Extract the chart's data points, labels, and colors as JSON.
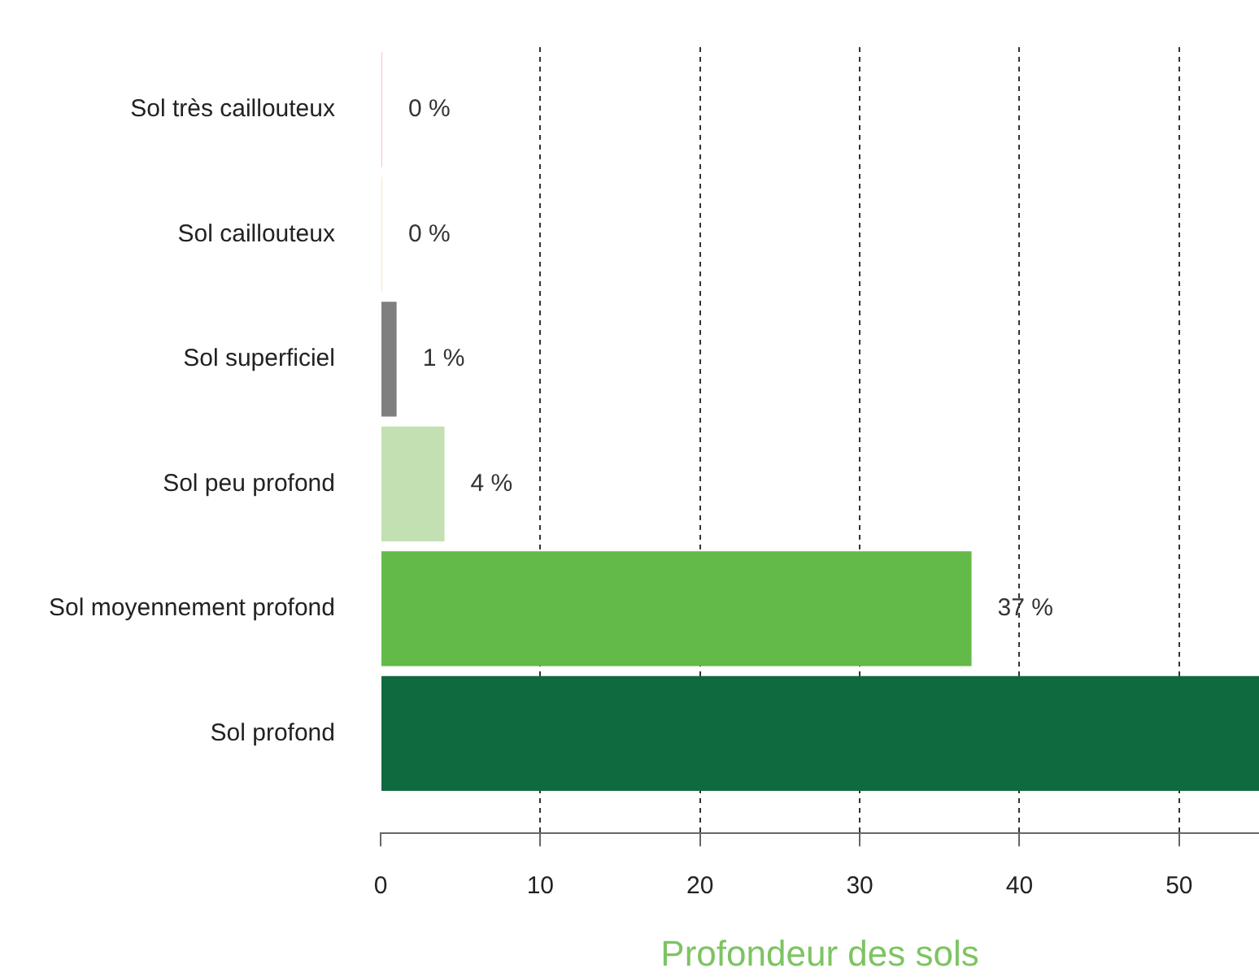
{
  "chart_data": {
    "type": "bar",
    "orientation": "horizontal",
    "xlabel": "Profondeur des sols",
    "categories": [
      "Sol très caillouteux",
      "Sol caillouteux",
      "Sol superficiel",
      "Sol peu profond",
      "Sol moyennement profond",
      "Sol profond"
    ],
    "values": [
      0,
      0,
      1,
      4,
      37,
      55
    ],
    "colors": [
      "#f5c4c4",
      "#fbe6bb",
      "#7f7f7f",
      "#c2e0b1",
      "#63ba48",
      "#106a3f"
    ],
    "value_labels": [
      "0 %",
      "0 %",
      "1 %",
      "4 %",
      "37 %",
      null
    ],
    "xlim": [
      0,
      55
    ],
    "xticks": [
      0,
      10,
      20,
      30,
      40,
      50
    ],
    "grid": "x"
  }
}
